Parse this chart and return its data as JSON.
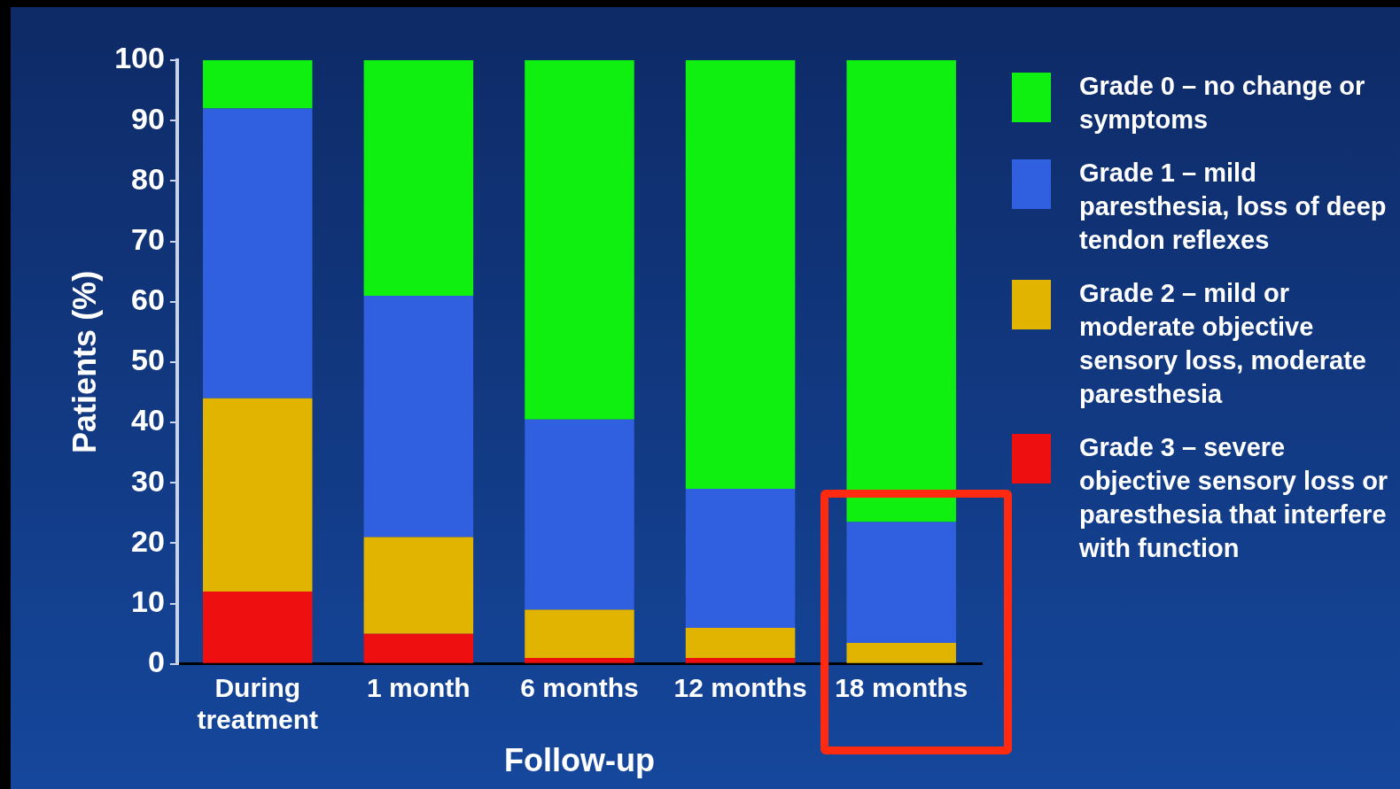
{
  "chart_data": {
    "type": "bar",
    "stacked": true,
    "xlabel": "Follow-up",
    "ylabel": "Patients (%)",
    "categories": [
      "During treatment",
      "1 month",
      "6 months",
      "12 months",
      "18 months"
    ],
    "series": [
      {
        "name": "Grade 3 – severe objective sensory loss or paresthesia that interfere with function",
        "color": "#ee1010",
        "values": [
          12,
          5,
          1,
          1,
          0
        ]
      },
      {
        "name": "Grade 2 – mild or moderate objective sensory loss, moderate paresthesia",
        "color": "#e0b400",
        "values": [
          32,
          16,
          8,
          5,
          3.5
        ]
      },
      {
        "name": "Grade 1 – mild paresthesia, loss of deep tendon reflexes",
        "color": "#3060e0",
        "values": [
          48,
          40,
          31.5,
          23,
          20
        ]
      },
      {
        "name": "Grade 0 – no change or symptoms",
        "color": "#10f010",
        "values": [
          8,
          39,
          59.5,
          71,
          76.5
        ]
      }
    ],
    "ylim": [
      0,
      100
    ],
    "yticks": [
      0,
      10,
      20,
      30,
      40,
      50,
      60,
      70,
      80,
      90,
      100
    ],
    "grid": false,
    "legend": "right"
  }
}
